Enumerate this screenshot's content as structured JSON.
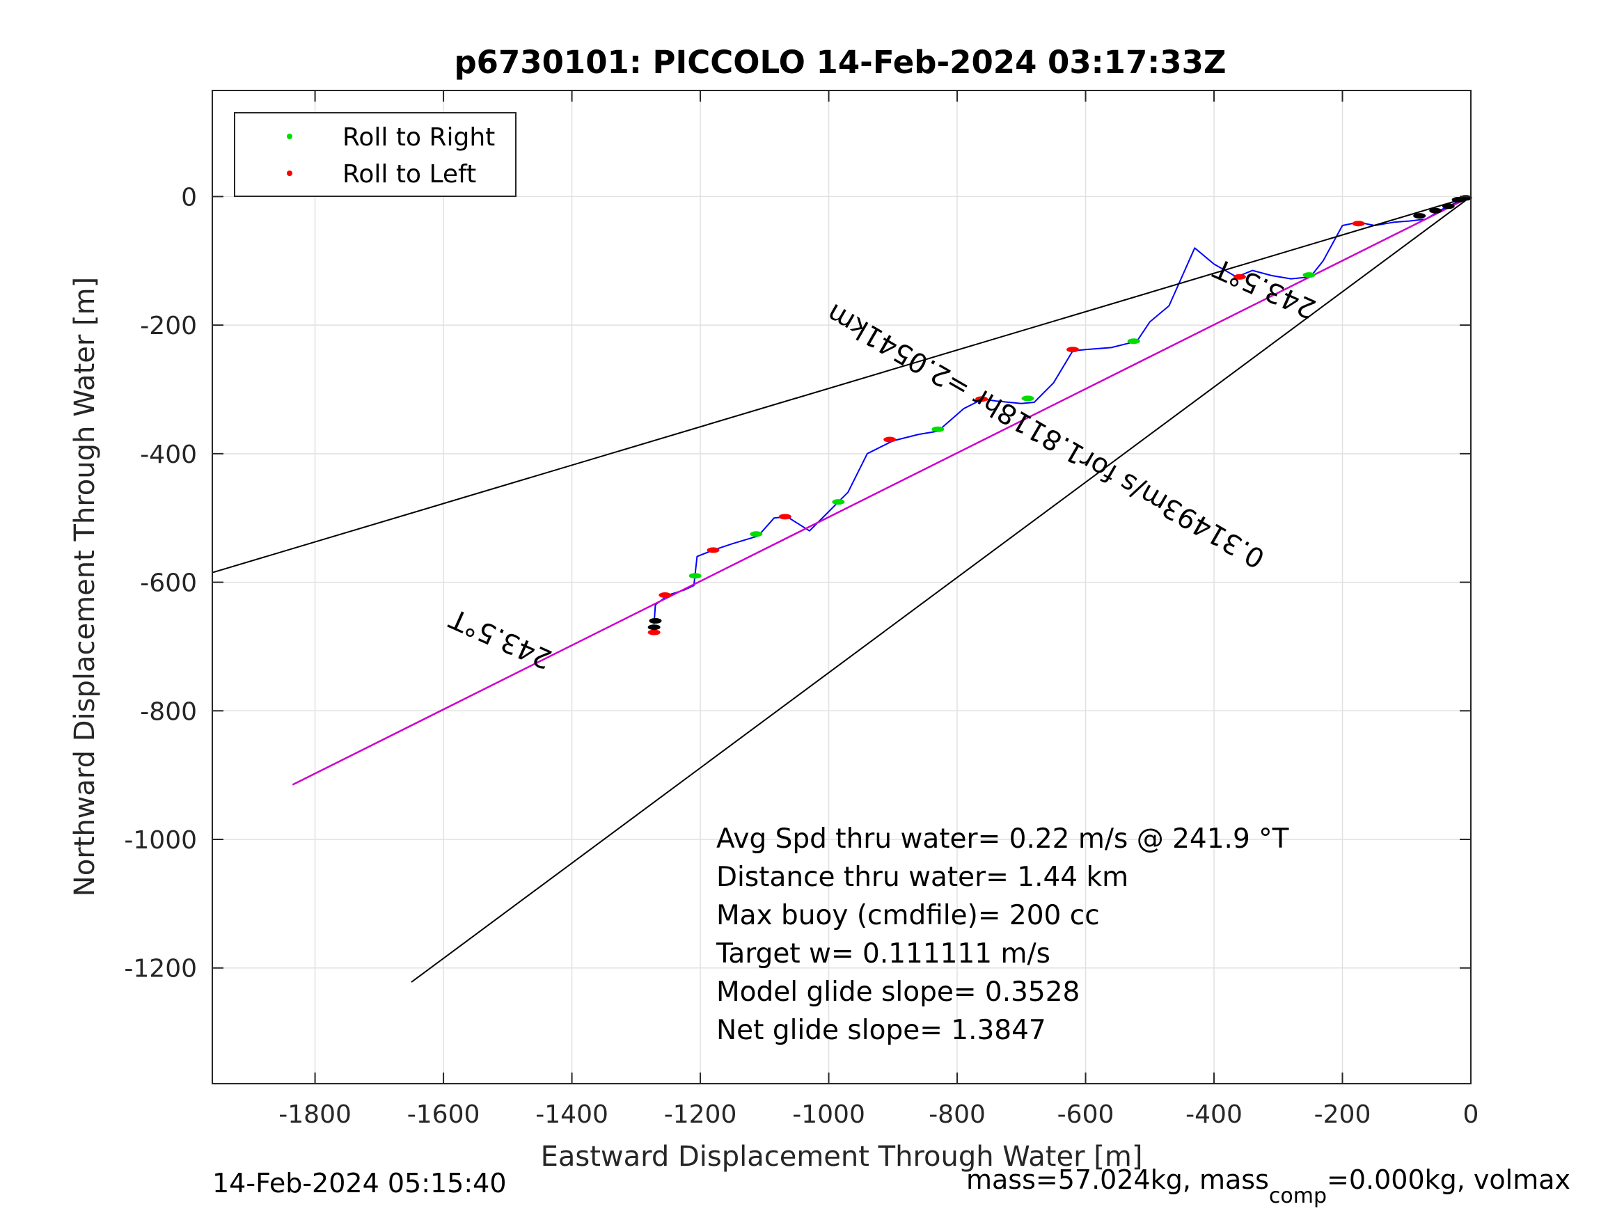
{
  "chart_data": {
    "type": "line",
    "title": "p6730101: PICCOLO 14-Feb-2024 03:17:33Z",
    "xlabel": "Eastward Displacement Through Water [m]",
    "ylabel": "Northward Displacement Through Water [m]",
    "xlim": [
      -1960,
      0
    ],
    "ylim": [
      -1380,
      165
    ],
    "xticks": [
      -1800,
      -1600,
      -1400,
      -1200,
      -1000,
      -800,
      -600,
      -400,
      -200,
      0
    ],
    "yticks": [
      0,
      -200,
      -400,
      -600,
      -800,
      -1000,
      -1200
    ],
    "xtick_labels": [
      "-1800",
      "-1600",
      "-1400",
      "-1200",
      "-1000",
      "-800",
      "-600",
      "-400",
      "-200",
      "0"
    ],
    "ytick_labels": [
      "0",
      "-200",
      "-400",
      "-600",
      "-800",
      "-1000",
      "-1200"
    ],
    "grid": true,
    "legend": {
      "placement": "top-left",
      "entries": [
        {
          "name": "Roll to Right",
          "color": "#00dd00"
        },
        {
          "name": "Roll to Left",
          "color": "#ff0000"
        }
      ]
    },
    "colors": {
      "track": "#0000ff",
      "mean_line": "#cc00cc",
      "bound_lines": "#000000",
      "depth_marks": "#000000"
    },
    "series": [
      {
        "role": "track",
        "x": [
          0,
          -20,
          -45,
          -70,
          -95,
          -120,
          -150,
          -175,
          -200,
          -230,
          -250,
          -280,
          -310,
          -340,
          -365,
          -400,
          -430,
          -470,
          -500,
          -520,
          -560,
          -600,
          -620,
          -650,
          -680,
          -700,
          -740,
          -760,
          -790,
          -830,
          -860,
          -900,
          -940,
          -970,
          -985,
          -1000,
          -1030,
          -1065,
          -1085,
          -1110,
          -1150,
          -1180,
          -1205,
          -1210,
          -1225,
          -1250,
          -1270,
          -1272
        ],
        "y": [
          0,
          -8,
          -20,
          -35,
          -38,
          -40,
          -45,
          -40,
          -45,
          -100,
          -125,
          -128,
          -123,
          -115,
          -125,
          -105,
          -80,
          -170,
          -195,
          -225,
          -235,
          -238,
          -240,
          -290,
          -320,
          -322,
          -318,
          -315,
          -330,
          -365,
          -370,
          -380,
          -400,
          -460,
          -475,
          -490,
          -520,
          -498,
          -500,
          -528,
          -540,
          -550,
          -560,
          -605,
          -612,
          -620,
          -635,
          -665
        ]
      },
      {
        "role": "mean_line",
        "x": [
          0,
          -1835
        ],
        "y": [
          0,
          -915
        ]
      },
      {
        "role": "bound_line",
        "x": [
          0,
          -1960
        ],
        "y": [
          0,
          -585
        ]
      },
      {
        "role": "bound_line",
        "x": [
          0,
          -1650
        ],
        "y": [
          0,
          -1222
        ]
      },
      {
        "role": "roll_right",
        "x": [
          -252,
          -525,
          -690,
          -830,
          -985,
          -1113,
          -1208
        ],
        "y": [
          -122,
          -225,
          -314,
          -362,
          -475,
          -525,
          -590
        ]
      },
      {
        "role": "roll_left",
        "x": [
          -175,
          -360,
          -620,
          -762,
          -905,
          -1068,
          -1180,
          -1255,
          -1272
        ],
        "y": [
          -42,
          -125,
          -238,
          -315,
          -378,
          -498,
          -550,
          -620,
          -678
        ]
      },
      {
        "role": "depth_marks",
        "x": [
          -8,
          -20,
          -35,
          -55,
          -80,
          -1270,
          -1272
        ],
        "y": [
          -2,
          -5,
          -15,
          -22,
          -30,
          -660,
          -670
        ]
      }
    ],
    "annotations": [
      {
        "text": "243.5°T",
        "x": -1505,
        "y": -675,
        "rotation": 204
      },
      {
        "text": "243.5°T",
        "x": -315,
        "y": -130,
        "rotation": 204
      },
      {
        "text": "0.31493m/s for1.8118hr =2.0541km",
        "x": -655,
        "y": -360,
        "rotation": 210
      }
    ],
    "stats": [
      "Avg Spd thru water=  0.22 m/s @ 241.9 °T",
      "Distance thru water=  1.44 km",
      "Max buoy (cmdfile)= 200 cc",
      "Target w= 0.111111 m/s",
      "Model glide slope= 0.3528",
      "Net glide slope= 1.3847"
    ]
  },
  "footer": {
    "timestamp": "14-Feb-2024 05:15:40",
    "mass_prefix": "mass=57.024kg, mass",
    "mass_sub": "comp",
    "mass_suffix": "=0.000kg, volmax"
  }
}
